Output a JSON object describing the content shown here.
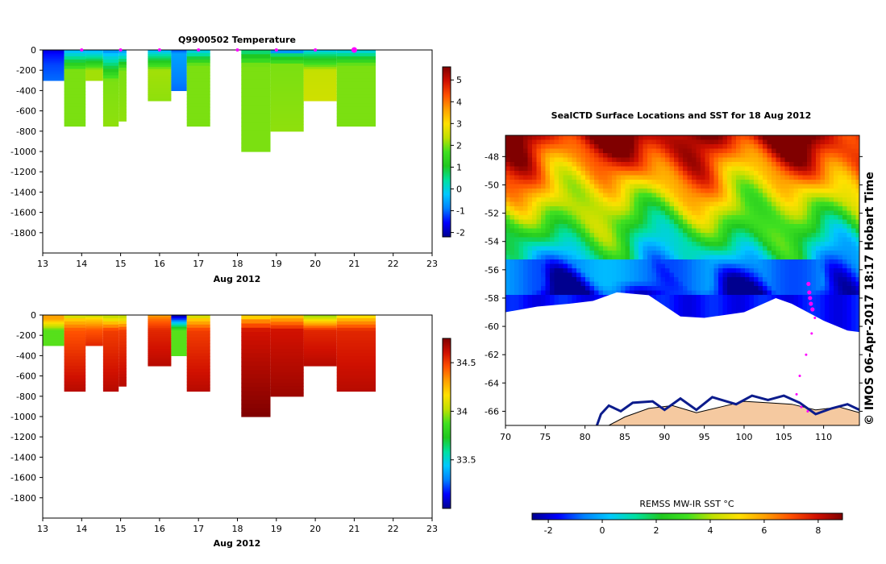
{
  "colors": {
    "jet": [
      "#00008f",
      "#0000ff",
      "#0080ff",
      "#00c8ff",
      "#00e0a0",
      "#20c820",
      "#40e020",
      "#c0e000",
      "#ffe000",
      "#ffa000",
      "#ff5000",
      "#d01000",
      "#800000"
    ]
  },
  "chart_data": [
    {
      "type": "heatmap",
      "title": "Q9900502  Temperature",
      "xlabel": "Aug 2012",
      "ylabel": "",
      "xlim": [
        13,
        23
      ],
      "ylim": [
        -2000,
        0
      ],
      "xticks": [
        "13",
        "14",
        "15",
        "16",
        "17",
        "18",
        "19",
        "20",
        "21",
        "22",
        "23"
      ],
      "yticks": [
        "0",
        "-200",
        "-400",
        "-600",
        "-800",
        "-1000",
        "-1200",
        "-1400",
        "-1600",
        "-1800"
      ],
      "colorbar": {
        "min": -2.2,
        "max": 5.6,
        "ticks": [
          "5",
          "4",
          "3",
          "2",
          "1",
          "0",
          "-1",
          "-2"
        ]
      },
      "markers_x": [
        14,
        15,
        16,
        17,
        18,
        19,
        20,
        21
      ],
      "profiles": [
        {
          "x0": 13.0,
          "x1": 13.55,
          "top": [
            -1.8,
            -1.5
          ],
          "mid": -1.2,
          "bottom": -1.0,
          "depth": 300,
          "midDepth": 150
        },
        {
          "x0": 13.55,
          "x1": 14.1,
          "top": [
            -0.5,
            0.0
          ],
          "mid": 2.0,
          "bottom": 2.0,
          "depth": 750,
          "midDepth": 200
        },
        {
          "x0": 14.1,
          "x1": 14.55,
          "top": [
            -0.5,
            0.0
          ],
          "mid": 2.2,
          "bottom": 2.2,
          "depth": 300,
          "midDepth": 200
        },
        {
          "x0": 14.55,
          "x1": 14.95,
          "top": [
            -0.9,
            -0.3
          ],
          "mid": 2.0,
          "bottom": 2.1,
          "depth": 750,
          "midDepth": 300
        },
        {
          "x0": 14.95,
          "x1": 15.15,
          "top": [
            -0.8,
            -0.2
          ],
          "mid": 2.0,
          "bottom": 2.1,
          "depth": 700,
          "midDepth": 200
        },
        {
          "x0": 15.7,
          "x1": 16.3,
          "top": [
            -0.5,
            0.2
          ],
          "mid": 2.2,
          "bottom": 2.1,
          "depth": 500,
          "midDepth": 200
        },
        {
          "x0": 16.3,
          "x1": 16.7,
          "top": [
            -1.2,
            -0.6
          ],
          "mid": -1.0,
          "bottom": -1.0,
          "depth": 400,
          "midDepth": 400
        },
        {
          "x0": 16.7,
          "x1": 17.3,
          "top": [
            -0.2,
            0.3
          ],
          "mid": 2.0,
          "bottom": 2.0,
          "depth": 750,
          "midDepth": 150
        },
        {
          "x0": 18.1,
          "x1": 18.85,
          "top": [
            0.5,
            0.8
          ],
          "mid": 2.0,
          "bottom": 2.0,
          "depth": 1000,
          "midDepth": 150
        },
        {
          "x0": 18.85,
          "x1": 19.7,
          "top": [
            -1.5,
            0.5
          ],
          "mid": 2.0,
          "bottom": 2.1,
          "depth": 800,
          "midDepth": 150
        },
        {
          "x0": 19.7,
          "x1": 20.55,
          "top": [
            -0.3,
            0.5
          ],
          "mid": 2.4,
          "bottom": 2.5,
          "depth": 500,
          "midDepth": 200
        },
        {
          "x0": 20.55,
          "x1": 21.55,
          "top": [
            -0.2,
            0.4
          ],
          "mid": 2.0,
          "bottom": 2.0,
          "depth": 750,
          "midDepth": 150
        }
      ]
    },
    {
      "type": "heatmap",
      "title": "",
      "xlabel": "Aug 2012",
      "ylabel": "",
      "xlim": [
        13,
        23
      ],
      "ylim": [
        -2000,
        0
      ],
      "xticks": [
        "13",
        "14",
        "15",
        "16",
        "17",
        "18",
        "19",
        "20",
        "21",
        "22",
        "23"
      ],
      "yticks": [
        "0",
        "-200",
        "-400",
        "-600",
        "-800",
        "-1000",
        "-1200",
        "-1400",
        "-1600",
        "-1800"
      ],
      "colorbar": {
        "min": 33.0,
        "max": 34.75,
        "ticks": [
          "34.5",
          "34",
          "33.5"
        ]
      },
      "profiles": [
        {
          "x0": 13.0,
          "x1": 13.55,
          "top": [
            34.3,
            34.3
          ],
          "mid": 33.9,
          "bottom": 33.9,
          "depth": 300,
          "midDepth": 150
        },
        {
          "x0": 13.55,
          "x1": 14.1,
          "top": [
            34.0,
            34.2
          ],
          "mid": 34.45,
          "bottom": 34.65,
          "depth": 750,
          "midDepth": 150
        },
        {
          "x0": 14.1,
          "x1": 14.55,
          "top": [
            34.0,
            34.2
          ],
          "mid": 34.45,
          "bottom": 34.55,
          "depth": 300,
          "midDepth": 150
        },
        {
          "x0": 14.55,
          "x1": 14.95,
          "top": [
            34.0,
            34.1
          ],
          "mid": 34.5,
          "bottom": 34.65,
          "depth": 750,
          "midDepth": 150
        },
        {
          "x0": 14.95,
          "x1": 15.15,
          "top": [
            34.0,
            34.1
          ],
          "mid": 34.5,
          "bottom": 34.65,
          "depth": 700,
          "midDepth": 150
        },
        {
          "x0": 15.7,
          "x1": 16.3,
          "top": [
            34.3,
            34.4
          ],
          "mid": 34.55,
          "bottom": 34.65,
          "depth": 500,
          "midDepth": 150
        },
        {
          "x0": 16.3,
          "x1": 16.7,
          "top": [
            33.0,
            33.2
          ],
          "mid": 33.9,
          "bottom": 33.9,
          "depth": 400,
          "midDepth": 150
        },
        {
          "x0": 16.7,
          "x1": 17.3,
          "top": [
            34.0,
            34.2
          ],
          "mid": 34.5,
          "bottom": 34.65,
          "depth": 750,
          "midDepth": 150
        },
        {
          "x0": 18.1,
          "x1": 18.85,
          "top": [
            34.1,
            34.3
          ],
          "mid": 34.6,
          "bottom": 34.75,
          "depth": 1000,
          "midDepth": 150
        },
        {
          "x0": 18.85,
          "x1": 19.7,
          "top": [
            34.2,
            34.3
          ],
          "mid": 34.6,
          "bottom": 34.7,
          "depth": 800,
          "midDepth": 150
        },
        {
          "x0": 19.7,
          "x1": 20.55,
          "top": [
            33.95,
            34.1
          ],
          "mid": 34.55,
          "bottom": 34.65,
          "depth": 500,
          "midDepth": 150
        },
        {
          "x0": 20.55,
          "x1": 21.55,
          "top": [
            34.1,
            34.25
          ],
          "mid": 34.55,
          "bottom": 34.65,
          "depth": 750,
          "midDepth": 150
        }
      ]
    },
    {
      "type": "heatmap",
      "title": "SealCTD Surface Locations and SST for 18 Aug 2012",
      "xlabel": "",
      "ylabel": "",
      "xlim": [
        70,
        114.5
      ],
      "ylim": [
        -67,
        -46.5
      ],
      "xticks": [
        "70",
        "75",
        "80",
        "85",
        "90",
        "95",
        "100",
        "105",
        "110"
      ],
      "yticks": [
        "-48",
        "-50",
        "-52",
        "-54",
        "-56",
        "-58",
        "-60",
        "-62",
        "-64",
        "-66"
      ],
      "colorbar": {
        "label": "REMSS MW-IR SST °C",
        "min": -2.6,
        "max": 8.9,
        "ticks": [
          "-2",
          "0",
          "2",
          "4",
          "6",
          "8"
        ]
      },
      "side_note": "©  IMOS 06-Apr-2017 18:17 Hobart Time",
      "track": [
        [
          108.1,
          -57.0
        ],
        [
          108.2,
          -57.6
        ],
        [
          108.3,
          -58.0
        ],
        [
          108.4,
          -58.4
        ],
        [
          108.6,
          -58.8
        ],
        [
          108.9,
          -59.4
        ],
        [
          108.5,
          -60.5
        ],
        [
          107.8,
          -62.0
        ],
        [
          107.0,
          -63.5
        ],
        [
          106.6,
          -64.8
        ],
        [
          107.2,
          -65.7
        ],
        [
          108.0,
          -66.0
        ]
      ]
    }
  ]
}
